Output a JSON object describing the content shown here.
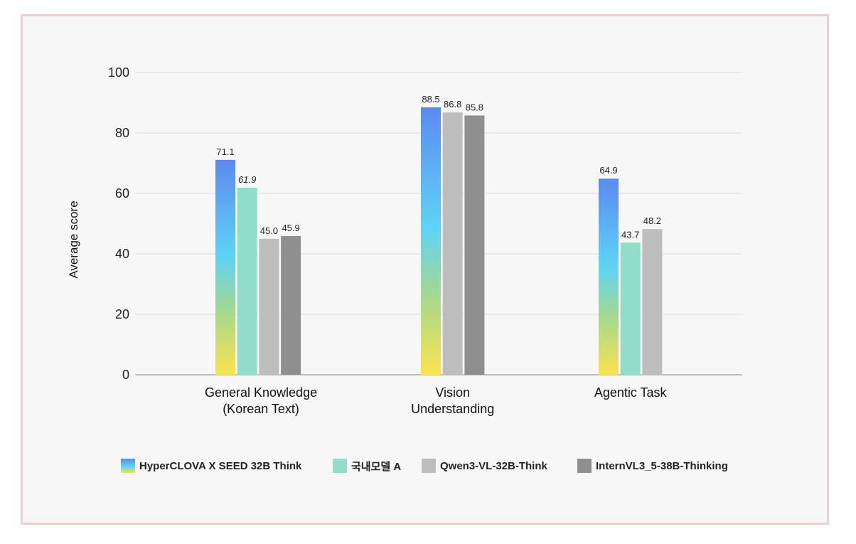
{
  "chart_data": {
    "type": "bar",
    "title": "",
    "xlabel": "",
    "ylabel": "Average score",
    "ylim": [
      0,
      100
    ],
    "yticks": [
      0,
      20,
      40,
      60,
      80,
      100
    ],
    "grid": true,
    "legend_position": "bottom",
    "categories": [
      [
        "General Knowledge",
        "(Korean Text)"
      ],
      [
        "Vision",
        "Understanding"
      ],
      [
        "Agentic Task"
      ]
    ],
    "series": [
      {
        "name": "HyperCLOVA X SEED 32B Think",
        "color": "gradient",
        "values": [
          71.1,
          88.5,
          64.9
        ],
        "labels": [
          "71.1",
          "88.5",
          "64.9"
        ]
      },
      {
        "name": "국내모델 A",
        "color": "#92dcc9",
        "values": [
          61.9,
          null,
          43.7
        ],
        "labels": [
          "61.9",
          "",
          "43.7"
        ]
      },
      {
        "name": "Qwen3-VL-32B-Think",
        "color": "#bdbdbd",
        "values": [
          45.0,
          86.8,
          48.2
        ],
        "labels": [
          "45.0",
          "86.8",
          "48.2"
        ]
      },
      {
        "name": "InternVL3_5-38B-Thinking",
        "color": "#8f8f8f",
        "values": [
          45.9,
          85.8,
          null
        ],
        "labels": [
          "45.9",
          "85.8",
          ""
        ]
      }
    ]
  }
}
